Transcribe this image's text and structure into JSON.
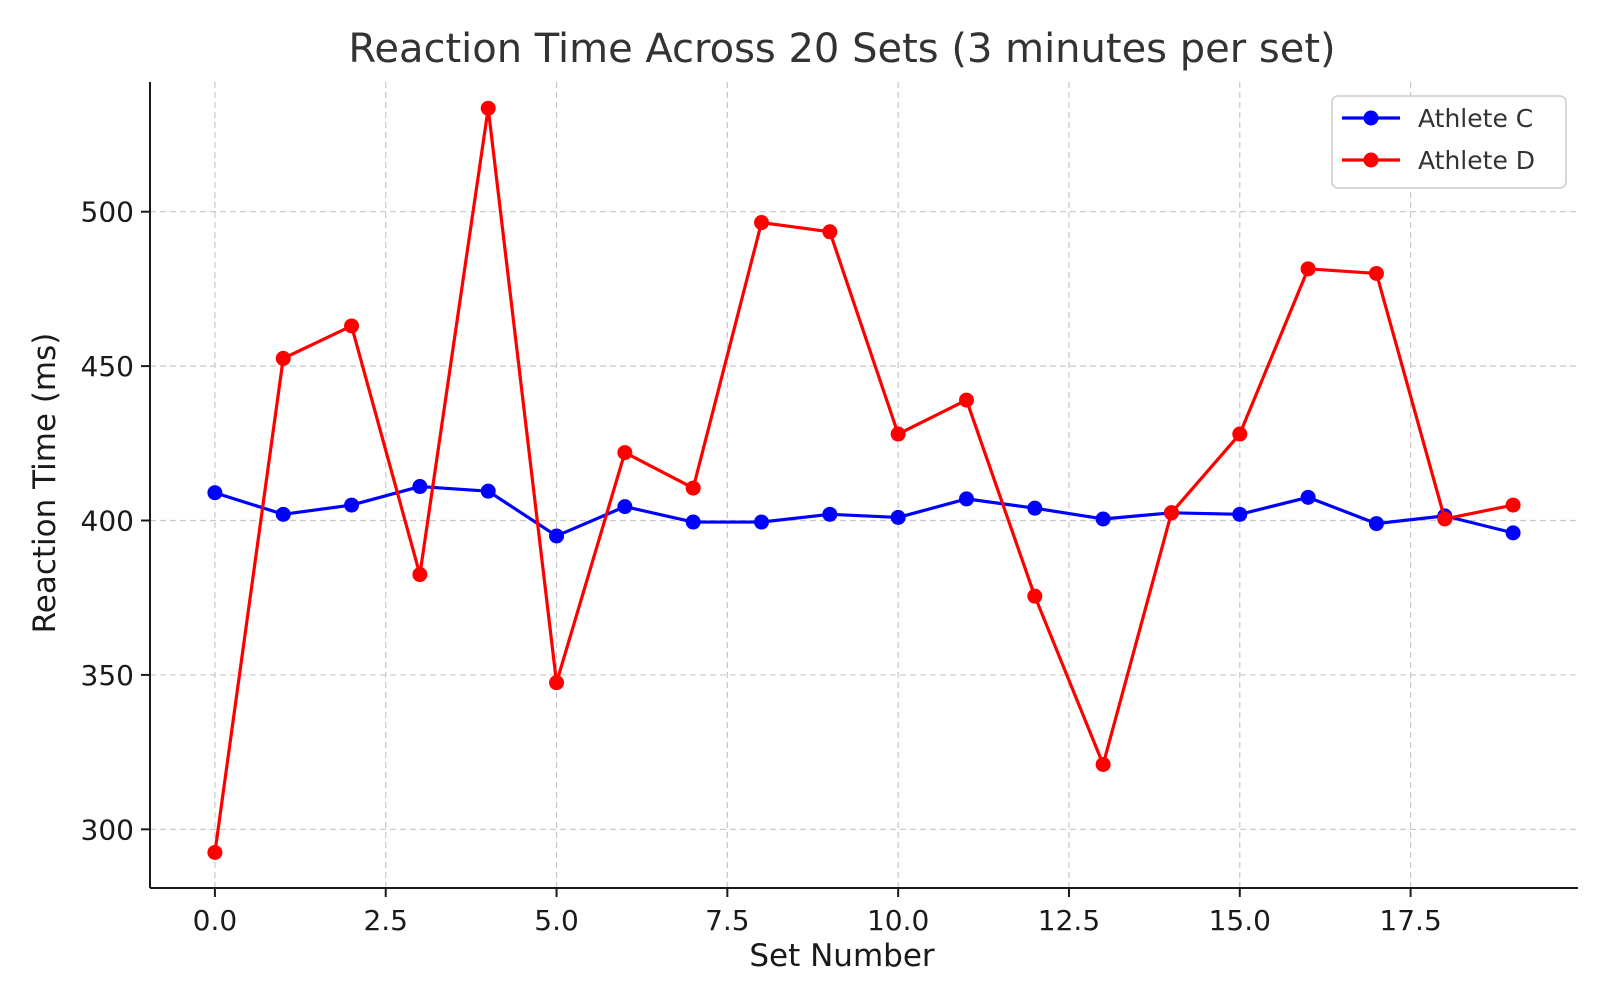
{
  "chart_data": {
    "type": "line",
    "title": "Reaction Time Across 20 Sets (3 minutes per set)",
    "xlabel": "Set Number",
    "ylabel": "Reaction Time (ms)",
    "xlim": [
      -0.95,
      19.95
    ],
    "ylim": [
      281,
      542
    ],
    "xticks": [
      0.0,
      2.5,
      5.0,
      7.5,
      10.0,
      12.5,
      15.0,
      17.5
    ],
    "xtick_labels": [
      "0.0",
      "2.5",
      "5.0",
      "7.5",
      "10.0",
      "12.5",
      "15.0",
      "17.5"
    ],
    "yticks": [
      300,
      350,
      400,
      450,
      500
    ],
    "ytick_labels": [
      "300",
      "350",
      "400",
      "450",
      "500"
    ],
    "grid": true,
    "legend_position": "top-right",
    "x": [
      0,
      1,
      2,
      3,
      4,
      5,
      6,
      7,
      8,
      9,
      10,
      11,
      12,
      13,
      14,
      15,
      16,
      17,
      18,
      19
    ],
    "series": [
      {
        "name": "Athlete C",
        "color": "#0000ff",
        "values": [
          409,
          402,
          405,
          411,
          409.5,
          395,
          404.5,
          399.5,
          399.5,
          402,
          401,
          407,
          404,
          400.5,
          402.5,
          402,
          407.5,
          399,
          401.5,
          396
        ]
      },
      {
        "name": "Athlete D",
        "color": "#ff0000",
        "values": [
          292.5,
          452.5,
          463,
          382.5,
          533.5,
          347.5,
          422,
          410.5,
          496.5,
          493.5,
          428,
          439,
          375.5,
          321,
          402.5,
          428,
          481.5,
          480,
          400.5,
          405
        ]
      }
    ]
  }
}
